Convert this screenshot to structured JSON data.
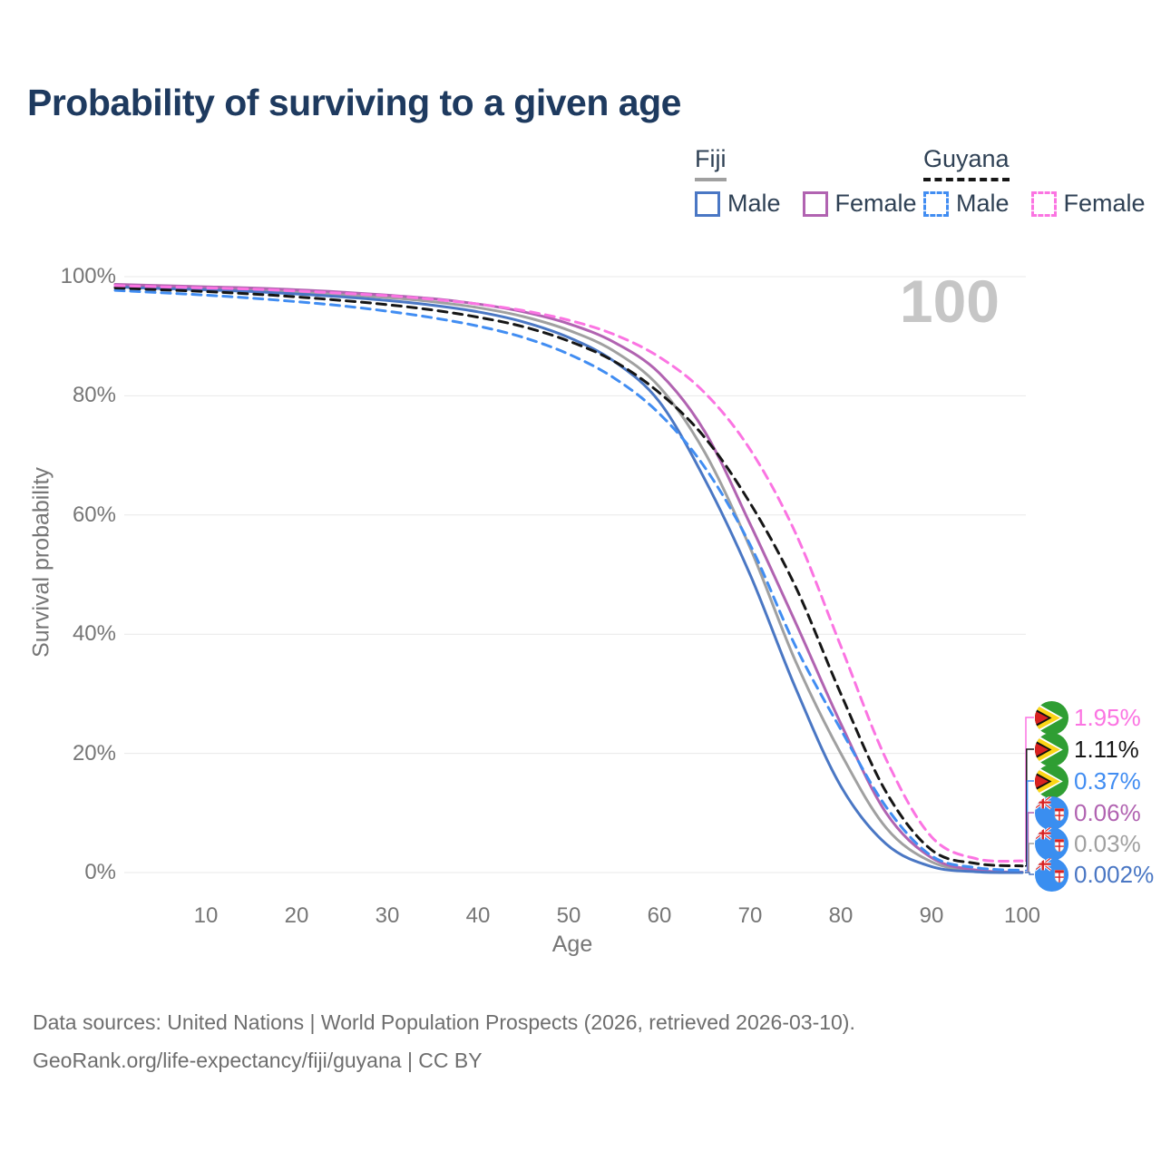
{
  "chart_data": {
    "type": "line",
    "title": "Probability of surviving to a given age",
    "xlabel": "Age",
    "ylabel": "Survival probability",
    "xlim": [
      0,
      100
    ],
    "ylim": [
      0,
      100
    ],
    "grid": "horizontal",
    "x_ticks": [
      10,
      20,
      30,
      40,
      50,
      60,
      70,
      80,
      90,
      100
    ],
    "y_ticks": [
      0,
      20,
      40,
      60,
      80,
      100
    ],
    "y_tick_suffix": "%",
    "age_indicator": "100",
    "x": [
      0,
      5,
      10,
      15,
      20,
      25,
      30,
      35,
      40,
      45,
      50,
      55,
      60,
      65,
      70,
      75,
      80,
      85,
      90,
      95,
      100
    ],
    "series": [
      {
        "name": "Fiji All",
        "country": "Fiji",
        "sex": "All",
        "color": "#a0a0a0",
        "dashed": false,
        "flag": "fiji",
        "end_label": "0.03%",
        "values": [
          98.5,
          98.3,
          98.1,
          97.8,
          97.5,
          97.0,
          96.5,
          95.8,
          94.8,
          93.3,
          91.0,
          87.5,
          81.5,
          70.5,
          54.5,
          35.5,
          20.0,
          7.5,
          1.8,
          0.25,
          0.03
        ]
      },
      {
        "name": "Fiji Female",
        "country": "Fiji",
        "sex": "Female",
        "color": "#b163b1",
        "dashed": false,
        "flag": "fiji",
        "end_label": "0.06%",
        "values": [
          98.7,
          98.5,
          98.3,
          98.1,
          97.8,
          97.4,
          96.9,
          96.3,
          95.4,
          94.1,
          92.1,
          89.0,
          83.8,
          74.0,
          58.5,
          42.0,
          25.0,
          10.0,
          2.5,
          0.4,
          0.06
        ]
      },
      {
        "name": "Fiji Male",
        "country": "Fiji",
        "sex": "Male",
        "color": "#4a77c4",
        "dashed": false,
        "flag": "fiji",
        "end_label": "0.002%",
        "values": [
          98.3,
          98.0,
          97.8,
          97.5,
          97.1,
          96.6,
          96.0,
          95.2,
          94.1,
          92.4,
          89.8,
          85.8,
          79.0,
          66.0,
          50.0,
          31.0,
          14.5,
          4.8,
          1.0,
          0.12,
          0.002
        ]
      },
      {
        "name": "Guyana Male",
        "country": "Guyana",
        "sex": "Male",
        "color": "#418df2",
        "dashed": true,
        "flag": "guyana",
        "end_label": "0.37%",
        "values": [
          97.7,
          97.3,
          96.9,
          96.4,
          95.8,
          95.1,
          94.2,
          93.1,
          91.7,
          89.8,
          87.0,
          83.0,
          77.0,
          68.0,
          55.0,
          38.0,
          24.0,
          11.0,
          2.8,
          0.8,
          0.37
        ]
      },
      {
        "name": "Guyana All",
        "country": "Guyana",
        "sex": "All",
        "color": "#161616",
        "dashed": true,
        "flag": "guyana",
        "end_label": "1.11%",
        "values": [
          98.1,
          97.8,
          97.5,
          97.1,
          96.6,
          96.0,
          95.3,
          94.4,
          93.2,
          91.6,
          89.2,
          85.8,
          80.5,
          73.0,
          62.0,
          48.0,
          30.0,
          13.5,
          3.8,
          1.5,
          1.11
        ]
      },
      {
        "name": "Guyana Female",
        "country": "Guyana",
        "sex": "Female",
        "color": "#fb74e2",
        "dashed": true,
        "flag": "guyana",
        "end_label": "1.95%",
        "values": [
          98.5,
          98.3,
          98.1,
          97.9,
          97.6,
          97.2,
          96.8,
          96.2,
          95.4,
          94.3,
          92.7,
          90.3,
          86.5,
          80.5,
          71.0,
          57.0,
          38.0,
          19.0,
          6.0,
          2.3,
          1.95
        ]
      }
    ],
    "end_label_order": [
      "Guyana Female",
      "Guyana All",
      "Guyana Male",
      "Fiji Female",
      "Fiji All",
      "Fiji Male"
    ]
  },
  "legend": {
    "groups": [
      {
        "name": "Fiji",
        "line_style": "solid",
        "underline_color": "#a0a0a0",
        "items": [
          {
            "label": "Male",
            "color": "#4a77c4",
            "dashed": false
          },
          {
            "label": "Female",
            "color": "#b163b1",
            "dashed": false
          }
        ]
      },
      {
        "name": "Guyana",
        "line_style": "dashed",
        "underline_color": "#161616",
        "items": [
          {
            "label": "Male",
            "color": "#418df2",
            "dashed": true
          },
          {
            "label": "Female",
            "color": "#fb74e2",
            "dashed": true
          }
        ]
      }
    ]
  },
  "footer": {
    "line1": "Data sources: United Nations | World Population Prospects (2026, retrieved 2026-03-10).",
    "line2": "GeoRank.org/life-expectancy/fiji/guyana | CC BY"
  }
}
